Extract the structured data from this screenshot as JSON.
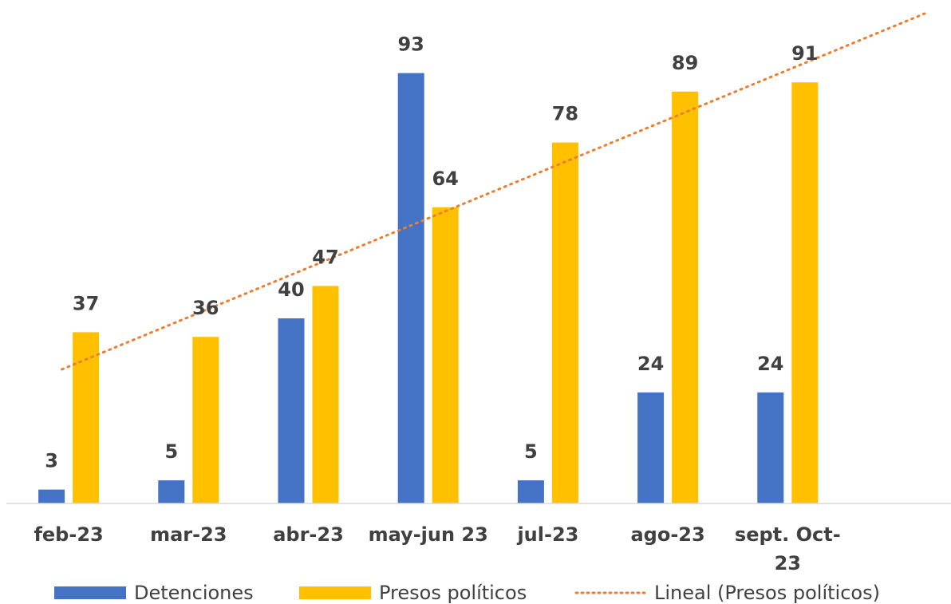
{
  "chart_data": {
    "type": "bar",
    "categories": [
      "feb-23",
      "mar-23",
      "abr-23",
      "may-jun 23",
      "jul-23",
      "ago-23",
      "sept. Oct-23"
    ],
    "category_lines": [
      [
        "feb-23"
      ],
      [
        "mar-23"
      ],
      [
        "abr-23"
      ],
      [
        "may-jun 23"
      ],
      [
        "jul-23"
      ],
      [
        "ago-23"
      ],
      [
        "sept. Oct-",
        "23"
      ]
    ],
    "series": [
      {
        "name": "Detenciones",
        "values": [
          3,
          5,
          40,
          93,
          5,
          24,
          24
        ],
        "color": "#4472C4"
      },
      {
        "name": "Presos políticos",
        "values": [
          37,
          36,
          47,
          64,
          78,
          89,
          91
        ],
        "color": "#FFC000"
      }
    ],
    "trendline": {
      "name": "Lineal (Presos políticos)",
      "type": "linear",
      "of_series": "Presos políticos",
      "color": "#ED7D31",
      "style": "dotted"
    },
    "data_labels": true,
    "ylim": [
      0,
      100
    ],
    "grid": false,
    "legend_position": "bottom",
    "title": "",
    "xlabel": "",
    "ylabel": ""
  }
}
